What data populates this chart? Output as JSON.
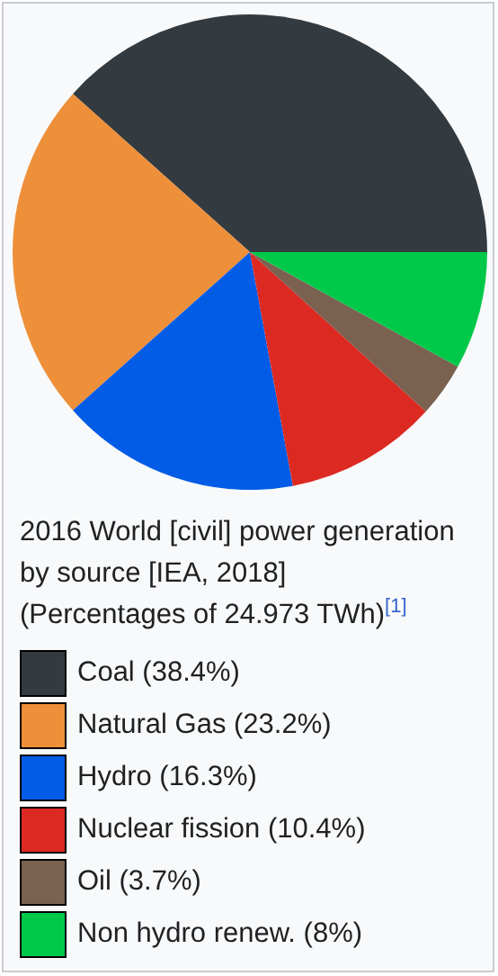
{
  "chart_data": {
    "type": "pie",
    "title": "2016 World [civil] power generation by source [IEA, 2018]",
    "subtitle": "(Percentages of 24.973 TWh)$^{[1]}$",
    "categories": [
      "Coal (38.4%)",
      "Natural Gas (23.2%)",
      "Hydro (16.3%)",
      "Nuclear fission (10.4%)",
      "Oil (3.7%)",
      "Non hydro renew. (8%)"
    ],
    "values": [
      38.4,
      23.2,
      16.3,
      10.4,
      3.7,
      8
    ],
    "colors": [
      "#333b40",
      "#ee8f3a",
      "#025ce6",
      "#dc2a22",
      "#7a6150",
      "#00c94a"
    ],
    "legend": "bottom"
  }
}
